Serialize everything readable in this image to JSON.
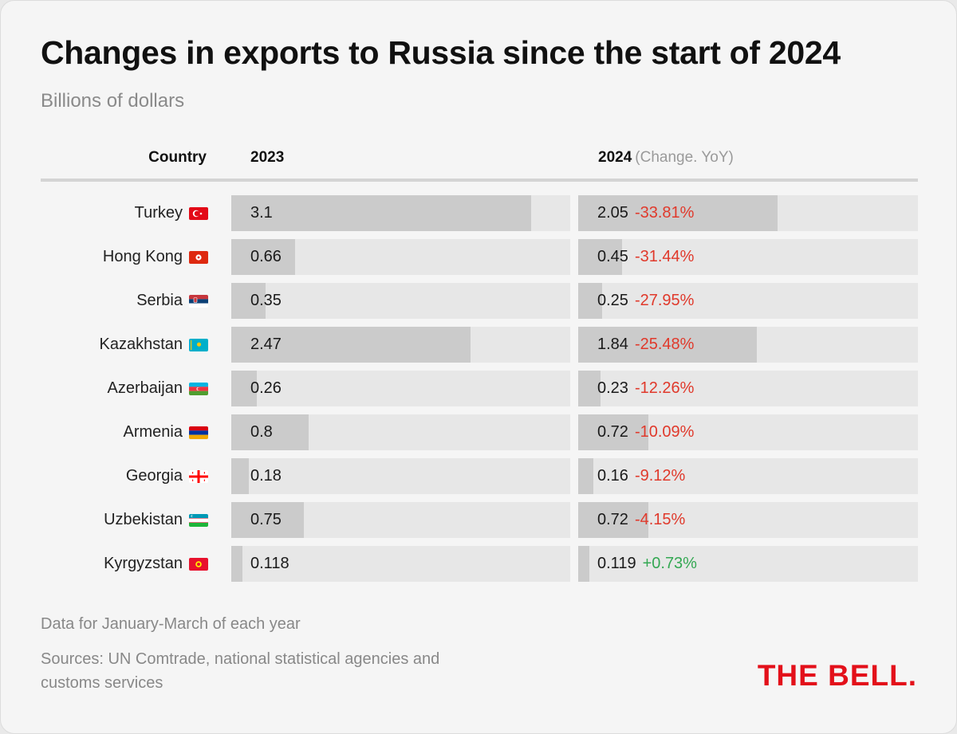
{
  "header": {
    "title": "Changes in exports to Russia since the start of 2024",
    "subtitle": "Billions of dollars"
  },
  "columns": {
    "country": "Country",
    "y2023": "2023",
    "y2024": "2024",
    "y2024_note": "(Change. YoY)"
  },
  "chart_data": {
    "type": "bar",
    "title": "Changes in exports to Russia since the start of 2024",
    "subtitle": "Billions of dollars",
    "categories": [
      "Turkey",
      "Hong Kong",
      "Serbia",
      "Kazakhstan",
      "Azerbaijan",
      "Armenia",
      "Georgia",
      "Uzbekistan",
      "Kyrgyzstan"
    ],
    "series": [
      {
        "name": "2023",
        "values": [
          3.1,
          0.66,
          0.35,
          2.47,
          0.26,
          0.8,
          0.18,
          0.75,
          0.118
        ],
        "labels": [
          "3.1",
          "0.66",
          "0.35",
          "2.47",
          "0.26",
          "0.8",
          "0.18",
          "0.75",
          "0.118"
        ]
      },
      {
        "name": "2024",
        "values": [
          2.05,
          0.45,
          0.25,
          1.84,
          0.23,
          0.72,
          0.16,
          0.72,
          0.119
        ],
        "labels": [
          "2.05",
          "0.45",
          "0.25",
          "1.84",
          "0.23",
          "0.72",
          "0.16",
          "0.72",
          "0.119"
        ]
      }
    ],
    "change_yoy": [
      "-33.81%",
      "-31.44%",
      "-27.95%",
      "-25.48%",
      "-12.26%",
      "-10.09%",
      "-9.12%",
      "-4.15%",
      "+0.73%"
    ],
    "xlim": [
      0,
      3.5
    ],
    "colors": {
      "bar": "#cbcbcb",
      "track": "#e7e7e7",
      "negative": "#e0392b",
      "positive": "#34a853"
    }
  },
  "flags": [
    "turkey-flag-icon",
    "hong-kong-flag-icon",
    "serbia-flag-icon",
    "kazakhstan-flag-icon",
    "azerbaijan-flag-icon",
    "armenia-flag-icon",
    "georgia-flag-icon",
    "uzbekistan-flag-icon",
    "kyrgyzstan-flag-icon"
  ],
  "footer": {
    "note": "Data for January-March of each year",
    "sources": "Sources: UN Comtrade, national statistical agencies and customs services",
    "logo": "THE BELL."
  }
}
